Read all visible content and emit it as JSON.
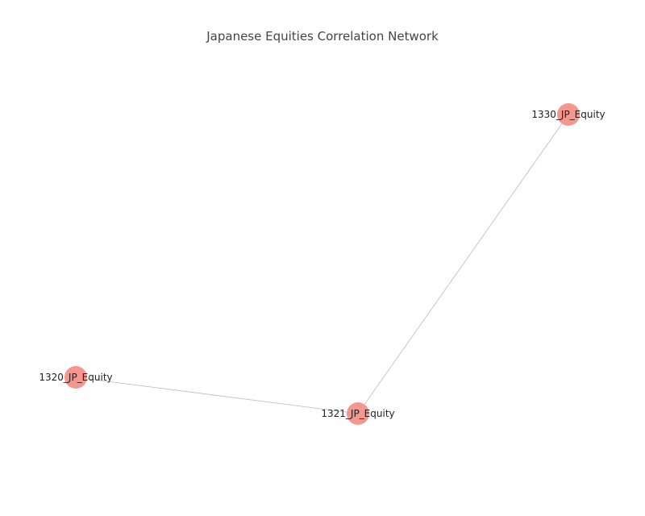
{
  "title": "Japanese Equities Correlation Network",
  "colors": {
    "node": "#f4978e",
    "edge": "#bbbbbb",
    "label": "#222222",
    "title": "#444444",
    "background": "#ffffff"
  },
  "chart_data": {
    "type": "network",
    "title": "Japanese Equities Correlation Network",
    "grid": false,
    "nodes": [
      {
        "id": "1330_JP_Equity",
        "label": "1330_JP_Equity"
      },
      {
        "id": "1321_JP_Equity",
        "label": "1321_JP_Equity"
      },
      {
        "id": "1320_JP_Equity",
        "label": "1320_JP_Equity"
      }
    ],
    "edges": [
      {
        "source": "1330_JP_Equity",
        "target": "1321_JP_Equity"
      },
      {
        "source": "1320_JP_Equity",
        "target": "1321_JP_Equity"
      }
    ]
  }
}
